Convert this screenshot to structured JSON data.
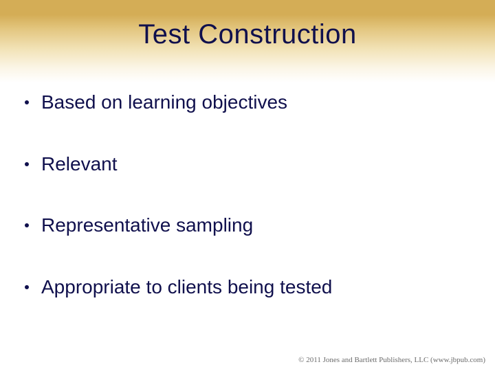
{
  "colors": {
    "title_color": "#10104d",
    "bullet_text_color": "#10104d",
    "bullet_dot_color": "#10104d",
    "footer_color": "#6b6b6b",
    "background": "#ffffff",
    "band_top": "#d4ad56",
    "band_bottom": "#ffffff"
  },
  "title": {
    "text": "Test Construction",
    "fontsize": 40
  },
  "bullets": {
    "fontsize": 28,
    "items": [
      {
        "text": "Based on learning objectives"
      },
      {
        "text": "Relevant"
      },
      {
        "text": "Representative sampling"
      },
      {
        "text": "Appropriate to clients being tested"
      }
    ]
  },
  "footer": {
    "text": "© 2011 Jones and Bartlett Publishers, LLC (www.jbpub.com)"
  }
}
